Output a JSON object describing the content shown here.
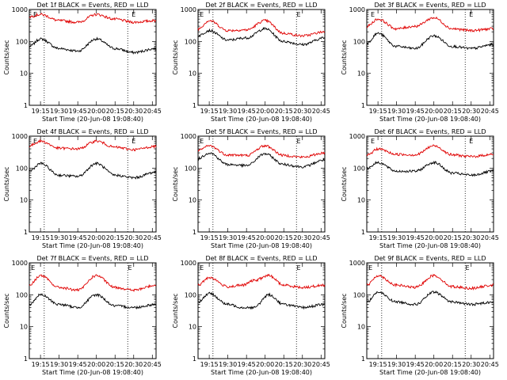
{
  "figure": {
    "ylabel": "Counts/sec",
    "xlabel": "Start Time (20-Jun-08 19:08:40)",
    "title_suffix": " BLACK = Events, RED = LLD",
    "series_names": [
      "Events",
      "LLD"
    ],
    "colors": {
      "events": "#000000",
      "lld": "#e00000",
      "axes": "#000000",
      "background": "#ffffff"
    },
    "marker_label": "E",
    "ytick_labels": [
      "1",
      "10",
      "100",
      "1000"
    ],
    "xtick_labels": [
      "19:15",
      "19:30",
      "19:45",
      "20:00",
      "20:15",
      "20:30",
      "20:45"
    ]
  },
  "chart_data": [
    {
      "type": "line",
      "title": "Det 1f",
      "yscale": "log",
      "ylim": [
        1,
        1000
      ],
      "xlim": [
        19.1,
        20.8
      ],
      "vlines": [
        19.3,
        20.42
      ],
      "markers": [
        19.18,
        20.5
      ],
      "series": [
        {
          "name": "Events",
          "x": [
            19.1,
            19.25,
            19.5,
            19.75,
            20.0,
            20.25,
            20.5,
            20.8
          ],
          "values": [
            70,
            120,
            60,
            50,
            120,
            60,
            45,
            60
          ]
        },
        {
          "name": "LLD",
          "x": [
            19.1,
            19.25,
            19.5,
            19.75,
            20.0,
            20.25,
            20.5,
            20.8
          ],
          "values": [
            600,
            700,
            450,
            400,
            700,
            500,
            400,
            450
          ]
        }
      ]
    },
    {
      "type": "line",
      "title": "Det 2f",
      "yscale": "log",
      "ylim": [
        1,
        1000
      ],
      "xlim": [
        19.1,
        20.8
      ],
      "vlines": [
        19.3,
        20.42
      ],
      "markers": [
        19.15,
        20.45
      ],
      "series": [
        {
          "name": "Events",
          "x": [
            19.1,
            19.25,
            19.5,
            19.75,
            20.0,
            20.25,
            20.5,
            20.8
          ],
          "values": [
            150,
            220,
            110,
            130,
            250,
            100,
            80,
            130
          ]
        },
        {
          "name": "LLD",
          "x": [
            19.1,
            19.25,
            19.5,
            19.75,
            20.0,
            20.25,
            20.5,
            20.8
          ],
          "values": [
            250,
            450,
            220,
            230,
            450,
            180,
            150,
            200
          ]
        }
      ]
    },
    {
      "type": "line",
      "title": "Det 3f",
      "yscale": "log",
      "ylim": [
        1,
        1000
      ],
      "xlim": [
        19.1,
        20.8
      ],
      "vlines": [
        19.3,
        20.42
      ],
      "markers": [
        19.18,
        20.5
      ],
      "series": [
        {
          "name": "Events",
          "x": [
            19.1,
            19.25,
            19.5,
            19.75,
            20.0,
            20.25,
            20.5,
            20.8
          ],
          "values": [
            90,
            180,
            70,
            60,
            150,
            70,
            60,
            80
          ]
        },
        {
          "name": "LLD",
          "x": [
            19.1,
            19.25,
            19.5,
            19.75,
            20.0,
            20.25,
            20.5,
            20.8
          ],
          "values": [
            300,
            500,
            250,
            300,
            550,
            250,
            220,
            250
          ]
        }
      ]
    },
    {
      "type": "line",
      "title": "Det 4f",
      "yscale": "log",
      "ylim": [
        1,
        1000
      ],
      "xlim": [
        19.1,
        20.8
      ],
      "vlines": [
        19.3,
        20.42
      ],
      "markers": [
        19.18,
        20.5
      ],
      "series": [
        {
          "name": "Events",
          "x": [
            19.1,
            19.25,
            19.5,
            19.75,
            20.0,
            20.25,
            20.5,
            20.8
          ],
          "values": [
            80,
            140,
            60,
            55,
            140,
            60,
            50,
            75
          ]
        },
        {
          "name": "LLD",
          "x": [
            19.1,
            19.25,
            19.5,
            19.75,
            20.0,
            20.25,
            20.5,
            20.8
          ],
          "values": [
            500,
            700,
            420,
            400,
            700,
            450,
            380,
            480
          ]
        }
      ]
    },
    {
      "type": "line",
      "title": "Det 5f",
      "yscale": "log",
      "ylim": [
        1,
        1000
      ],
      "xlim": [
        19.1,
        20.8
      ],
      "vlines": [
        19.3,
        20.42
      ],
      "markers": [
        19.15,
        20.45
      ],
      "series": [
        {
          "name": "Events",
          "x": [
            19.1,
            19.25,
            19.5,
            19.75,
            20.0,
            20.25,
            20.5,
            20.8
          ],
          "values": [
            200,
            300,
            130,
            120,
            280,
            130,
            110,
            180
          ]
        },
        {
          "name": "LLD",
          "x": [
            19.1,
            19.25,
            19.5,
            19.75,
            20.0,
            20.25,
            20.5,
            20.8
          ],
          "values": [
            350,
            500,
            260,
            250,
            500,
            250,
            220,
            300
          ]
        }
      ]
    },
    {
      "type": "line",
      "title": "Det 6f",
      "yscale": "log",
      "ylim": [
        1,
        1000
      ],
      "xlim": [
        19.1,
        20.8
      ],
      "vlines": [
        19.3,
        20.42
      ],
      "markers": [
        19.18,
        20.5
      ],
      "series": [
        {
          "name": "Events",
          "x": [
            19.1,
            19.25,
            19.5,
            19.75,
            20.0,
            20.25,
            20.5,
            20.8
          ],
          "values": [
            100,
            150,
            80,
            80,
            150,
            70,
            60,
            80
          ]
        },
        {
          "name": "LLD",
          "x": [
            19.1,
            19.25,
            19.5,
            19.75,
            20.0,
            20.25,
            20.5,
            20.8
          ],
          "values": [
            250,
            400,
            270,
            260,
            500,
            260,
            230,
            270
          ]
        }
      ]
    },
    {
      "type": "line",
      "title": "Det 7f",
      "yscale": "log",
      "ylim": [
        1,
        1000
      ],
      "xlim": [
        19.1,
        20.8
      ],
      "vlines": [
        19.3,
        20.42
      ],
      "markers": [
        19.15,
        20.45
      ],
      "series": [
        {
          "name": "Events",
          "x": [
            19.1,
            19.25,
            19.5,
            19.75,
            20.0,
            20.25,
            20.5,
            20.8
          ],
          "values": [
            50,
            100,
            50,
            40,
            100,
            45,
            40,
            50
          ]
        },
        {
          "name": "LLD",
          "x": [
            19.1,
            19.25,
            19.5,
            19.75,
            20.0,
            20.25,
            20.5,
            20.8
          ],
          "values": [
            200,
            400,
            170,
            140,
            400,
            170,
            140,
            200
          ]
        }
      ]
    },
    {
      "type": "line",
      "title": "Det 8f",
      "yscale": "log",
      "ylim": [
        1,
        1000
      ],
      "xlim": [
        19.1,
        20.8
      ],
      "vlines": [
        19.3,
        20.42
      ],
      "markers": [
        19.15,
        20.45
      ],
      "series": [
        {
          "name": "Events",
          "x": [
            19.1,
            19.25,
            19.5,
            19.7,
            19.85,
            20.05,
            20.25,
            20.5,
            20.8
          ],
          "values": [
            60,
            110,
            50,
            40,
            40,
            100,
            50,
            40,
            50
          ]
        },
        {
          "name": "LLD",
          "x": [
            19.1,
            19.25,
            19.5,
            19.7,
            19.85,
            20.05,
            20.25,
            20.5,
            20.8
          ],
          "values": [
            200,
            350,
            180,
            200,
            280,
            400,
            200,
            170,
            200
          ]
        }
      ]
    },
    {
      "type": "line",
      "title": "Det 9f",
      "yscale": "log",
      "ylim": [
        1,
        1000
      ],
      "xlim": [
        19.1,
        20.8
      ],
      "vlines": [
        19.3,
        20.42
      ],
      "markers": [
        19.15,
        20.45
      ],
      "series": [
        {
          "name": "Events",
          "x": [
            19.1,
            19.25,
            19.5,
            19.75,
            20.0,
            20.25,
            20.5,
            20.8
          ],
          "values": [
            60,
            120,
            60,
            50,
            120,
            60,
            50,
            60
          ]
        },
        {
          "name": "LLD",
          "x": [
            19.1,
            19.25,
            19.5,
            19.75,
            20.0,
            20.25,
            20.5,
            20.8
          ],
          "values": [
            200,
            400,
            200,
            170,
            400,
            180,
            160,
            200
          ]
        }
      ]
    }
  ]
}
